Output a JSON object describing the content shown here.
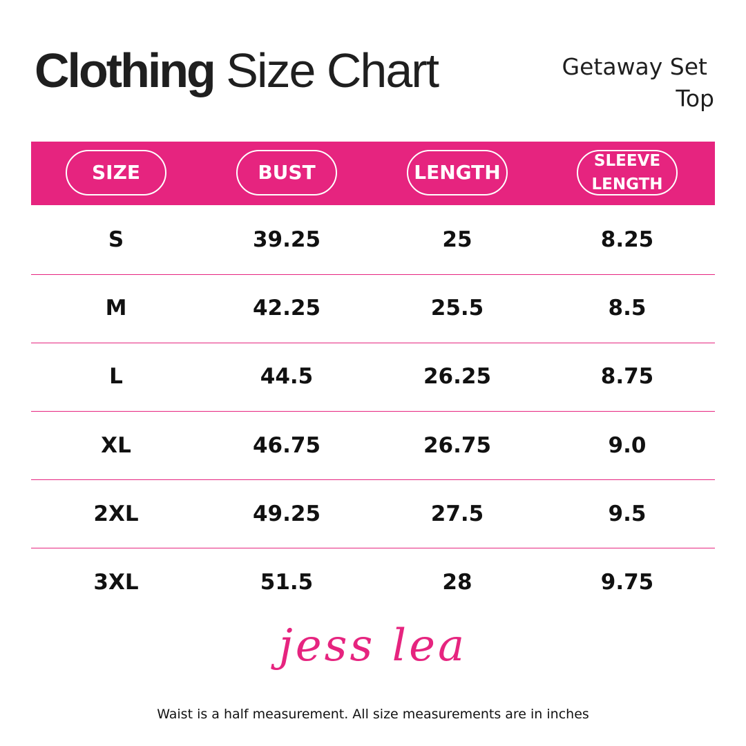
{
  "header": {
    "title_bold": "Clothing",
    "title_regular": "Size Chart",
    "subtitle": [
      "Getaway Set",
      "Top"
    ]
  },
  "table": {
    "columns": [
      [
        "SIZE"
      ],
      [
        "BUST"
      ],
      [
        "LENGTH"
      ],
      [
        "SLEEVE",
        "LENGTH"
      ]
    ],
    "rows": [
      [
        "S",
        "39.25",
        "25",
        "8.25"
      ],
      [
        "M",
        "42.25",
        "25.5",
        "8.5"
      ],
      [
        "L",
        "44.5",
        "26.25",
        "8.75"
      ],
      [
        "XL",
        "46.75",
        "26.75",
        "9.0"
      ],
      [
        "2XL",
        "49.25",
        "27.5",
        "9.5"
      ],
      [
        "3XL",
        "51.5",
        "28",
        "9.75"
      ]
    ]
  },
  "logo": "jess lea",
  "footnote": "Waist is a half measurement. All size measurements are in inches"
}
